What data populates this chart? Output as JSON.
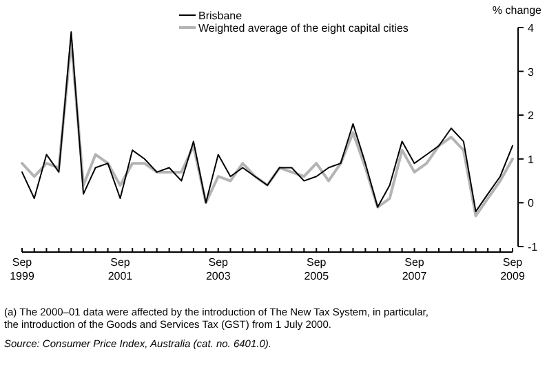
{
  "chart_data": {
    "type": "line",
    "ylabel": "% change",
    "x": [
      "1999-09",
      "1999-12",
      "2000-03",
      "2000-06",
      "2000-09",
      "2000-12",
      "2001-03",
      "2001-06",
      "2001-09",
      "2001-12",
      "2002-03",
      "2002-06",
      "2002-09",
      "2002-12",
      "2003-03",
      "2003-06",
      "2003-09",
      "2003-12",
      "2004-03",
      "2004-06",
      "2004-09",
      "2004-12",
      "2005-03",
      "2005-06",
      "2005-09",
      "2005-12",
      "2006-03",
      "2006-06",
      "2006-09",
      "2006-12",
      "2007-03",
      "2007-06",
      "2007-09",
      "2007-12",
      "2008-03",
      "2008-06",
      "2008-09",
      "2008-12",
      "2009-03",
      "2009-06",
      "2009-09"
    ],
    "series": [
      {
        "name": "Brisbane",
        "color": "#000000",
        "values": [
          0.7,
          0.1,
          1.1,
          0.7,
          3.9,
          0.2,
          0.8,
          0.9,
          0.1,
          1.2,
          1.0,
          0.7,
          0.8,
          0.5,
          1.4,
          0.0,
          1.1,
          0.6,
          0.8,
          0.6,
          0.4,
          0.8,
          0.8,
          0.5,
          0.6,
          0.8,
          0.9,
          1.8,
          0.9,
          -0.1,
          0.4,
          1.4,
          0.9,
          1.1,
          1.3,
          1.7,
          1.4,
          -0.2,
          0.2,
          0.6,
          1.3
        ]
      },
      {
        "name": "Weighted average of the eight capital cities",
        "color": "#b4b4b4",
        "values": [
          0.9,
          0.6,
          0.9,
          0.8,
          3.7,
          0.4,
          1.1,
          0.9,
          0.4,
          0.9,
          0.9,
          0.7,
          0.7,
          0.7,
          1.3,
          0.0,
          0.6,
          0.5,
          0.9,
          0.6,
          0.4,
          0.8,
          0.7,
          0.6,
          0.9,
          0.5,
          0.9,
          1.6,
          0.8,
          -0.1,
          0.1,
          1.2,
          0.7,
          0.9,
          1.3,
          1.5,
          1.2,
          -0.3,
          0.1,
          0.5,
          1.0
        ]
      }
    ],
    "xlim": [
      "1999-09",
      "2009-09"
    ],
    "xticks": [
      {
        "value": "1999-09",
        "label": "Sep 1999"
      },
      {
        "value": "1999-12",
        "label": null
      },
      {
        "value": "2000-03",
        "label": null
      },
      {
        "value": "2000-06",
        "label": null
      },
      {
        "value": "2000-09",
        "label": null
      },
      {
        "value": "2000-12",
        "label": null
      },
      {
        "value": "2001-03",
        "label": null
      },
      {
        "value": "2001-06",
        "label": null
      },
      {
        "value": "2001-09",
        "label": "Sep 2001"
      },
      {
        "value": "2001-12",
        "label": null
      },
      {
        "value": "2002-03",
        "label": null
      },
      {
        "value": "2002-06",
        "label": null
      },
      {
        "value": "2002-09",
        "label": null
      },
      {
        "value": "2002-12",
        "label": null
      },
      {
        "value": "2003-03",
        "label": null
      },
      {
        "value": "2003-06",
        "label": null
      },
      {
        "value": "2003-09",
        "label": "Sep 2003"
      },
      {
        "value": "2003-12",
        "label": null
      },
      {
        "value": "2004-03",
        "label": null
      },
      {
        "value": "2004-06",
        "label": null
      },
      {
        "value": "2004-09",
        "label": null
      },
      {
        "value": "2004-12",
        "label": null
      },
      {
        "value": "2005-03",
        "label": null
      },
      {
        "value": "2005-06",
        "label": null
      },
      {
        "value": "2005-09",
        "label": "Sep 2005"
      },
      {
        "value": "2005-12",
        "label": null
      },
      {
        "value": "2006-03",
        "label": null
      },
      {
        "value": "2006-06",
        "label": null
      },
      {
        "value": "2006-09",
        "label": null
      },
      {
        "value": "2006-12",
        "label": null
      },
      {
        "value": "2007-03",
        "label": null
      },
      {
        "value": "2007-06",
        "label": null
      },
      {
        "value": "2007-09",
        "label": "Sep 2007"
      },
      {
        "value": "2007-12",
        "label": null
      },
      {
        "value": "2008-03",
        "label": null
      },
      {
        "value": "2008-06",
        "label": null
      },
      {
        "value": "2008-09",
        "label": null
      },
      {
        "value": "2008-12",
        "label": null
      },
      {
        "value": "2009-03",
        "label": null
      },
      {
        "value": "2009-06",
        "label": null
      },
      {
        "value": "2009-09",
        "label": "Sep 2009"
      }
    ],
    "ylim": [
      -1,
      4
    ],
    "yticks": [
      -1,
      0,
      1,
      2,
      3,
      4
    ],
    "grid": false,
    "legend": "top right",
    "annotations": [
      "(a) The 2000–01 data were affected by the introduction of The New Tax System, in particular, the introduction of the Goods and Services Tax (GST) from 1 July 2000.",
      "Source: Consumer Price Index, Australia (cat. no. 6401.0)."
    ]
  }
}
